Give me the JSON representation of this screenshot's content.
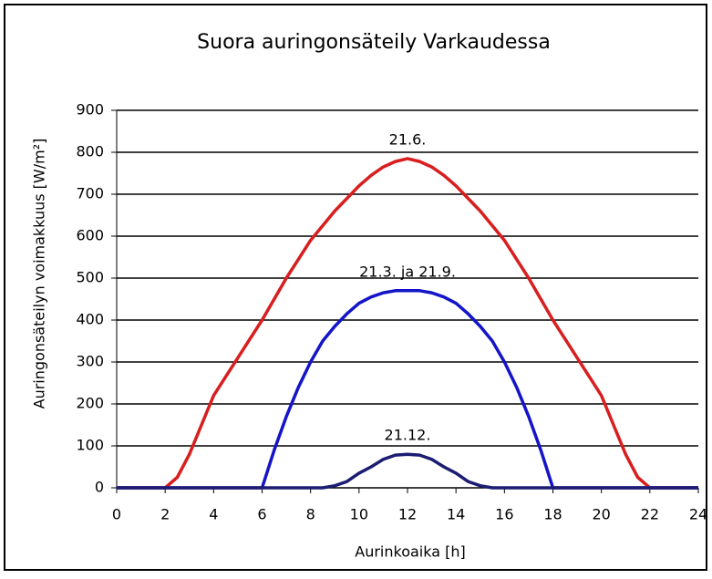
{
  "chart_data": {
    "type": "line",
    "title": "Suora auringonsäteily Varkaudessa",
    "x_label": "Aurinkoaika [h]",
    "y_label": "Auringonsäteilyn voimakkuus [W/m²]",
    "x": [
      0,
      0.5,
      1,
      1.5,
      2,
      2.5,
      3,
      3.5,
      4,
      4.5,
      5,
      5.5,
      6,
      6.5,
      7,
      7.5,
      8,
      8.5,
      9,
      9.5,
      10,
      10.5,
      11,
      11.5,
      12,
      12.5,
      13,
      13.5,
      14,
      14.5,
      15,
      15.5,
      16,
      16.5,
      17,
      17.5,
      18,
      18.5,
      19,
      19.5,
      20,
      20.5,
      21,
      21.5,
      22,
      22.5,
      23,
      23.5,
      24
    ],
    "series": [
      {
        "name": "21.6.",
        "color": "#d81e1e",
        "values": [
          0,
          0,
          0,
          0,
          0,
          25,
          80,
          150,
          220,
          265,
          310,
          355,
          400,
          450,
          500,
          545,
          590,
          625,
          660,
          690,
          720,
          745,
          765,
          778,
          785,
          778,
          765,
          745,
          720,
          690,
          660,
          625,
          590,
          545,
          500,
          450,
          400,
          355,
          310,
          265,
          220,
          150,
          80,
          25,
          0,
          0,
          0,
          0,
          0
        ]
      },
      {
        "name": "21.3. ja 21.9.",
        "color": "#1414c8",
        "values": [
          0,
          0,
          0,
          0,
          0,
          0,
          0,
          0,
          0,
          0,
          0,
          0,
          0,
          90,
          170,
          240,
          300,
          350,
          385,
          415,
          440,
          455,
          465,
          470,
          470,
          470,
          465,
          455,
          440,
          415,
          385,
          350,
          300,
          240,
          170,
          90,
          0,
          0,
          0,
          0,
          0,
          0,
          0,
          0,
          0,
          0,
          0,
          0,
          0
        ]
      },
      {
        "name": "21.12.",
        "color": "#1c1c72",
        "values": [
          0,
          0,
          0,
          0,
          0,
          0,
          0,
          0,
          0,
          0,
          0,
          0,
          0,
          0,
          0,
          0,
          0,
          0,
          5,
          15,
          35,
          50,
          68,
          78,
          80,
          78,
          68,
          50,
          35,
          15,
          5,
          0,
          0,
          0,
          0,
          0,
          0,
          0,
          0,
          0,
          0,
          0,
          0,
          0,
          0,
          0,
          0,
          0,
          0
        ]
      }
    ],
    "xlim": [
      0,
      24
    ],
    "xticks": [
      0,
      2,
      4,
      6,
      8,
      10,
      12,
      14,
      16,
      18,
      20,
      22,
      24
    ],
    "ylim": [
      0,
      900
    ],
    "yticks": [
      0,
      100,
      200,
      300,
      400,
      500,
      600,
      700,
      800,
      900
    ],
    "grid": true
  }
}
